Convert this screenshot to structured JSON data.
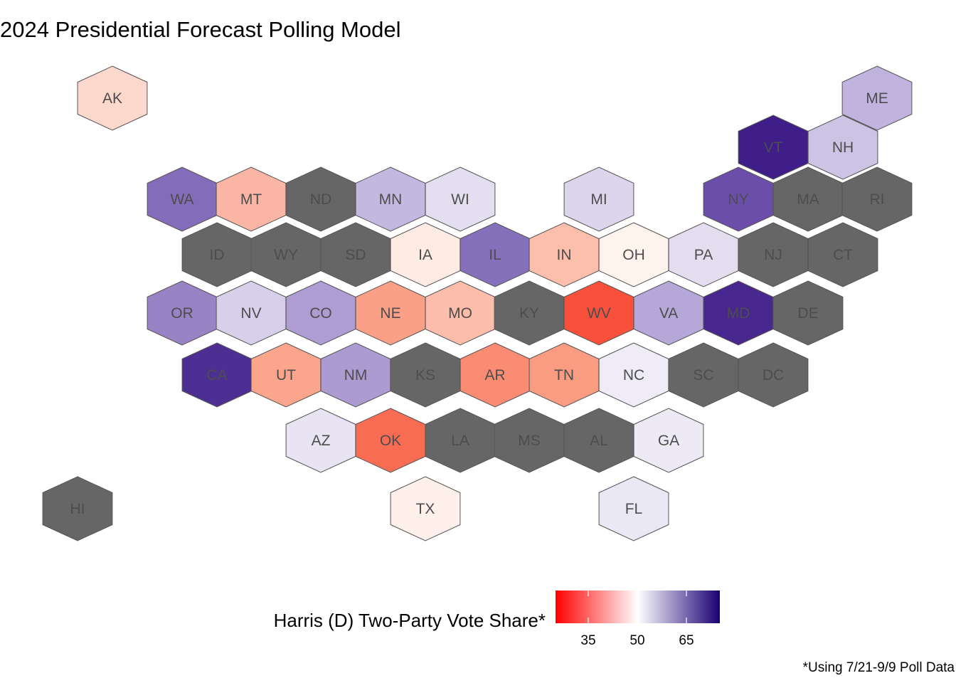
{
  "title": "2024 Presidential Forecast Polling Model",
  "caption": "*Using 7/21-9/9 Poll Data",
  "legend": {
    "title": "Harris (D) Two-Party Vote Share*",
    "ticks": [
      "35",
      "50",
      "65"
    ],
    "gradient_colors": [
      "#ff0000",
      "#ffffff",
      "#1a0073"
    ]
  },
  "no_data_color": "#666666",
  "states": [
    {
      "abbr": "AK",
      "fill": "#fdd8cc"
    },
    {
      "abbr": "ME",
      "fill": "#c0b3de"
    },
    {
      "abbr": "VT",
      "fill": "#3f1e8a"
    },
    {
      "abbr": "NH",
      "fill": "#cdc4e5"
    },
    {
      "abbr": "WA",
      "fill": "#836cb9"
    },
    {
      "abbr": "MT",
      "fill": "#fbb5a4"
    },
    {
      "abbr": "ND",
      "fill": "#666666"
    },
    {
      "abbr": "MN",
      "fill": "#c3b9e0"
    },
    {
      "abbr": "WI",
      "fill": "#e4dff0"
    },
    {
      "abbr": "MI",
      "fill": "#dcd5ec"
    },
    {
      "abbr": "NY",
      "fill": "#6a4ea9"
    },
    {
      "abbr": "MA",
      "fill": "#666666"
    },
    {
      "abbr": "RI",
      "fill": "#666666"
    },
    {
      "abbr": "ID",
      "fill": "#666666"
    },
    {
      "abbr": "WY",
      "fill": "#666666"
    },
    {
      "abbr": "SD",
      "fill": "#666666"
    },
    {
      "abbr": "IA",
      "fill": "#feebe4"
    },
    {
      "abbr": "IL",
      "fill": "#8570bb"
    },
    {
      "abbr": "IN",
      "fill": "#fcbfac"
    },
    {
      "abbr": "OH",
      "fill": "#fff3ee"
    },
    {
      "abbr": "PA",
      "fill": "#e3ddef"
    },
    {
      "abbr": "NJ",
      "fill": "#666666"
    },
    {
      "abbr": "CT",
      "fill": "#666666"
    },
    {
      "abbr": "OR",
      "fill": "#9884c5"
    },
    {
      "abbr": "NV",
      "fill": "#d8d0ea"
    },
    {
      "abbr": "CO",
      "fill": "#ad9dd2"
    },
    {
      "abbr": "NE",
      "fill": "#fb9f86"
    },
    {
      "abbr": "MO",
      "fill": "#fcbeab"
    },
    {
      "abbr": "KY",
      "fill": "#666666"
    },
    {
      "abbr": "WV",
      "fill": "#f8503a"
    },
    {
      "abbr": "VA",
      "fill": "#b5a7d7"
    },
    {
      "abbr": "MD",
      "fill": "#48288f"
    },
    {
      "abbr": "DE",
      "fill": "#666666"
    },
    {
      "abbr": "CA",
      "fill": "#4d2f93"
    },
    {
      "abbr": "UT",
      "fill": "#fba58c"
    },
    {
      "abbr": "NM",
      "fill": "#ab9bd1"
    },
    {
      "abbr": "KS",
      "fill": "#666666"
    },
    {
      "abbr": "AR",
      "fill": "#fa8c73"
    },
    {
      "abbr": "TN",
      "fill": "#fa9c82"
    },
    {
      "abbr": "NC",
      "fill": "#efecf7"
    },
    {
      "abbr": "SC",
      "fill": "#666666"
    },
    {
      "abbr": "DC",
      "fill": "#666666"
    },
    {
      "abbr": "AZ",
      "fill": "#e8e4f3"
    },
    {
      "abbr": "OK",
      "fill": "#f96c54"
    },
    {
      "abbr": "LA",
      "fill": "#666666"
    },
    {
      "abbr": "MS",
      "fill": "#666666"
    },
    {
      "abbr": "AL",
      "fill": "#666666"
    },
    {
      "abbr": "GA",
      "fill": "#edeaf6"
    },
    {
      "abbr": "HI",
      "fill": "#666666"
    },
    {
      "abbr": "TX",
      "fill": "#fff0ec"
    },
    {
      "abbr": "FL",
      "fill": "#ebe8f5"
    }
  ]
}
